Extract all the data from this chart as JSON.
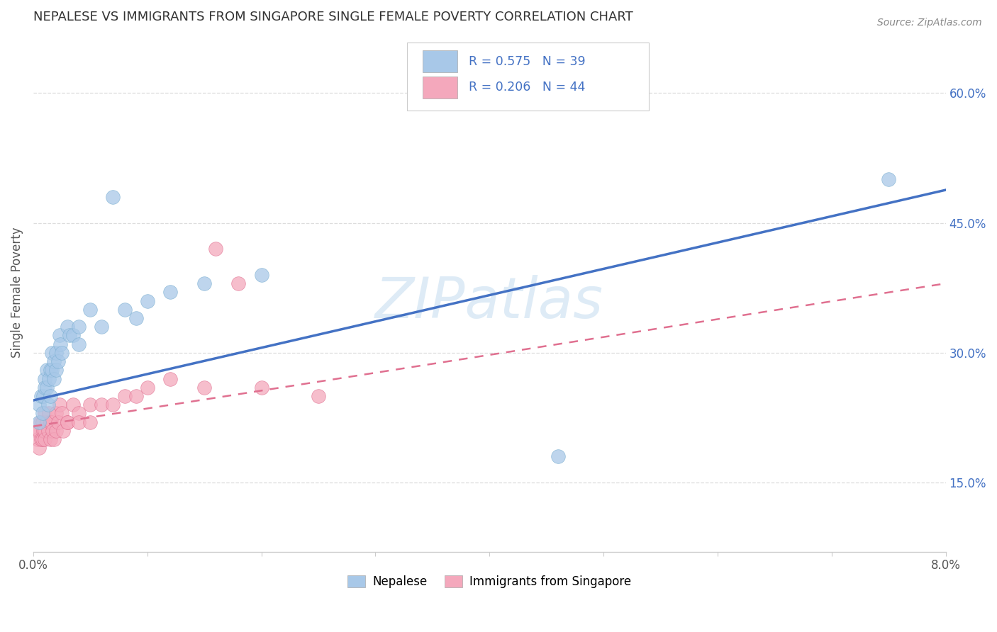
{
  "title": "NEPALESE VS IMMIGRANTS FROM SINGAPORE SINGLE FEMALE POVERTY CORRELATION CHART",
  "source": "Source: ZipAtlas.com",
  "ylabel": "Single Female Poverty",
  "ytick_labels": [
    "15.0%",
    "30.0%",
    "45.0%",
    "60.0%"
  ],
  "ytick_values": [
    0.15,
    0.3,
    0.45,
    0.6
  ],
  "xlim": [
    0.0,
    0.08
  ],
  "ylim": [
    0.07,
    0.67
  ],
  "legend_label1": "Nepalese",
  "legend_label2": "Immigrants from Singapore",
  "R1": 0.575,
  "N1": 39,
  "R2": 0.206,
  "N2": 44,
  "color_blue": "#a8c8e8",
  "color_blue_edge": "#7aaed0",
  "color_blue_line": "#4472c4",
  "color_pink": "#f4a8bc",
  "color_pink_edge": "#e07090",
  "color_pink_line": "#e07090",
  "watermark": "ZIPatlas",
  "nepalese_x": [
    0.0005,
    0.0005,
    0.0007,
    0.0008,
    0.0009,
    0.001,
    0.001,
    0.0012,
    0.0012,
    0.0013,
    0.0014,
    0.0015,
    0.0015,
    0.0016,
    0.0016,
    0.0018,
    0.0018,
    0.002,
    0.002,
    0.0022,
    0.0023,
    0.0024,
    0.0025,
    0.003,
    0.0032,
    0.0035,
    0.004,
    0.004,
    0.005,
    0.006,
    0.007,
    0.008,
    0.009,
    0.01,
    0.012,
    0.015,
    0.02,
    0.075,
    0.046
  ],
  "nepalese_y": [
    0.24,
    0.22,
    0.25,
    0.23,
    0.25,
    0.27,
    0.26,
    0.28,
    0.26,
    0.24,
    0.27,
    0.28,
    0.25,
    0.3,
    0.28,
    0.29,
    0.27,
    0.3,
    0.28,
    0.29,
    0.32,
    0.31,
    0.3,
    0.33,
    0.32,
    0.32,
    0.33,
    0.31,
    0.35,
    0.33,
    0.48,
    0.35,
    0.34,
    0.36,
    0.37,
    0.38,
    0.39,
    0.5,
    0.18
  ],
  "singapore_x": [
    0.0003,
    0.0004,
    0.0005,
    0.0005,
    0.0006,
    0.0007,
    0.0008,
    0.0008,
    0.0009,
    0.001,
    0.001,
    0.001,
    0.0012,
    0.0013,
    0.0014,
    0.0015,
    0.0015,
    0.0016,
    0.0017,
    0.0018,
    0.002,
    0.002,
    0.0022,
    0.0023,
    0.0025,
    0.0026,
    0.003,
    0.003,
    0.0035,
    0.004,
    0.004,
    0.005,
    0.005,
    0.006,
    0.007,
    0.008,
    0.009,
    0.01,
    0.012,
    0.015,
    0.016,
    0.018,
    0.02,
    0.025
  ],
  "singapore_y": [
    0.21,
    0.2,
    0.21,
    0.19,
    0.22,
    0.2,
    0.22,
    0.2,
    0.21,
    0.23,
    0.21,
    0.2,
    0.22,
    0.21,
    0.23,
    0.22,
    0.2,
    0.22,
    0.21,
    0.2,
    0.23,
    0.21,
    0.22,
    0.24,
    0.23,
    0.21,
    0.22,
    0.22,
    0.24,
    0.23,
    0.22,
    0.24,
    0.22,
    0.24,
    0.24,
    0.25,
    0.25,
    0.26,
    0.27,
    0.26,
    0.42,
    0.38,
    0.26,
    0.25
  ],
  "blue_line_x0": 0.0,
  "blue_line_y0": 0.245,
  "blue_line_x1": 0.08,
  "blue_line_y1": 0.488,
  "pink_line_x0": 0.0,
  "pink_line_y0": 0.215,
  "pink_line_x1": 0.08,
  "pink_line_y1": 0.38
}
